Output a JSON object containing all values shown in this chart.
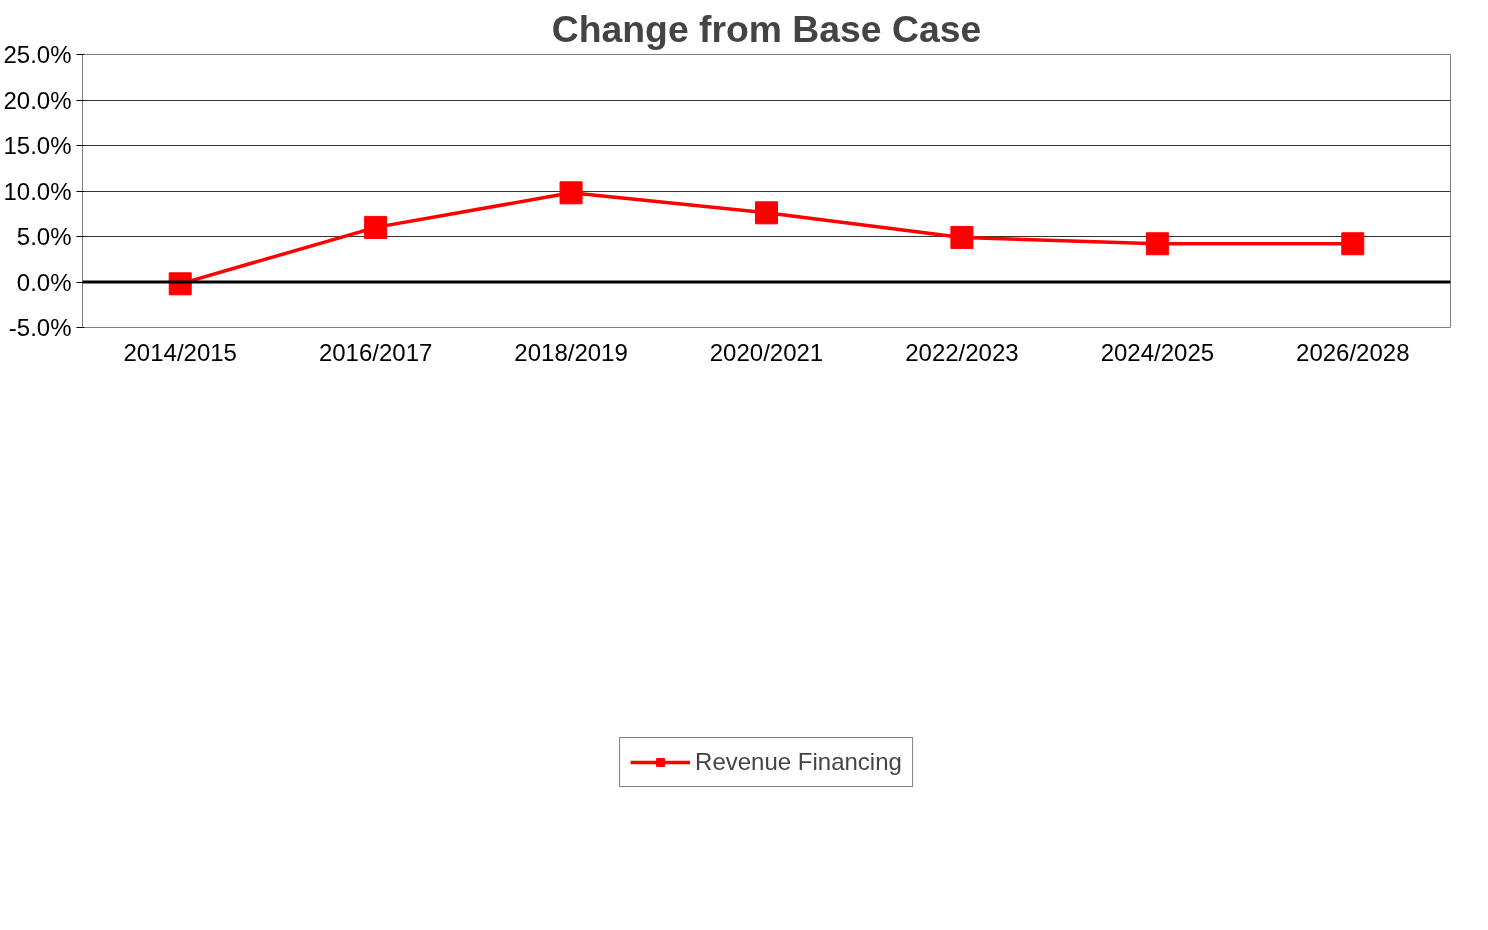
{
  "chart_data": {
    "type": "line",
    "title": "Change from Base Case",
    "categories": [
      "2014/2015",
      "2016/2017",
      "2018/2019",
      "2020/2021",
      "2022/2023",
      "2024/2025",
      "2026/2028"
    ],
    "series": [
      {
        "name": "Revenue Financing",
        "color": "#ff0000",
        "values": [
          -0.2,
          6.0,
          9.8,
          7.6,
          4.9,
          4.2,
          4.2
        ]
      }
    ],
    "ylim": [
      -5,
      25
    ],
    "yticks": [
      {
        "value": -5,
        "label": "-5.0%"
      },
      {
        "value": 0,
        "label": "0.0%"
      },
      {
        "value": 5,
        "label": "5.0%"
      },
      {
        "value": 10,
        "label": "10.0%"
      },
      {
        "value": 15,
        "label": "15.0%"
      },
      {
        "value": 20,
        "label": "20.0%"
      },
      {
        "value": 25,
        "label": "25.0%"
      }
    ],
    "ref_lines": [
      {
        "axis": "y",
        "value": 0,
        "color": "#000000"
      }
    ],
    "grid": "y",
    "legend": "bottom",
    "marker": "square",
    "line_style": "solid"
  }
}
